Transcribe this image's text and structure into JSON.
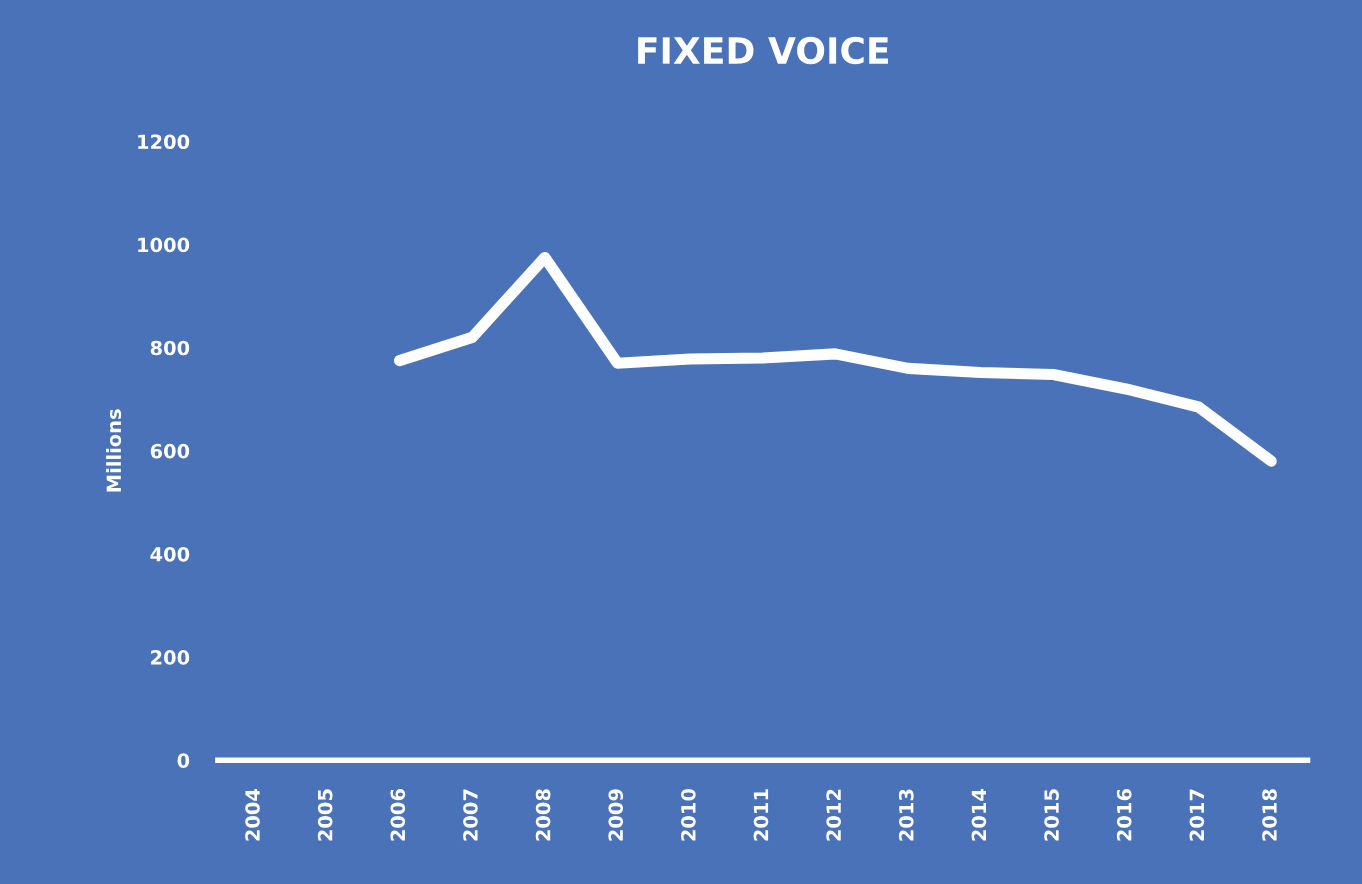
{
  "chart_data": {
    "type": "line",
    "title": "FIXED VOICE",
    "ylabel": "Millions",
    "categories": [
      "2004",
      "2005",
      "2006",
      "2007",
      "2008",
      "2009",
      "2010",
      "2011",
      "2012",
      "2013",
      "2014",
      "2015",
      "2016",
      "2017",
      "2018"
    ],
    "series": [
      {
        "color": "#ffffff",
        "values": [
          null,
          null,
          775,
          820,
          975,
          770,
          778,
          780,
          788,
          760,
          752,
          748,
          720,
          685,
          580
        ]
      }
    ],
    "ylim": [
      0,
      1200
    ],
    "yticks": [
      0,
      200,
      400,
      600,
      800,
      1000,
      1200
    ],
    "grid": false,
    "marker": "none",
    "line_style": "solid"
  }
}
